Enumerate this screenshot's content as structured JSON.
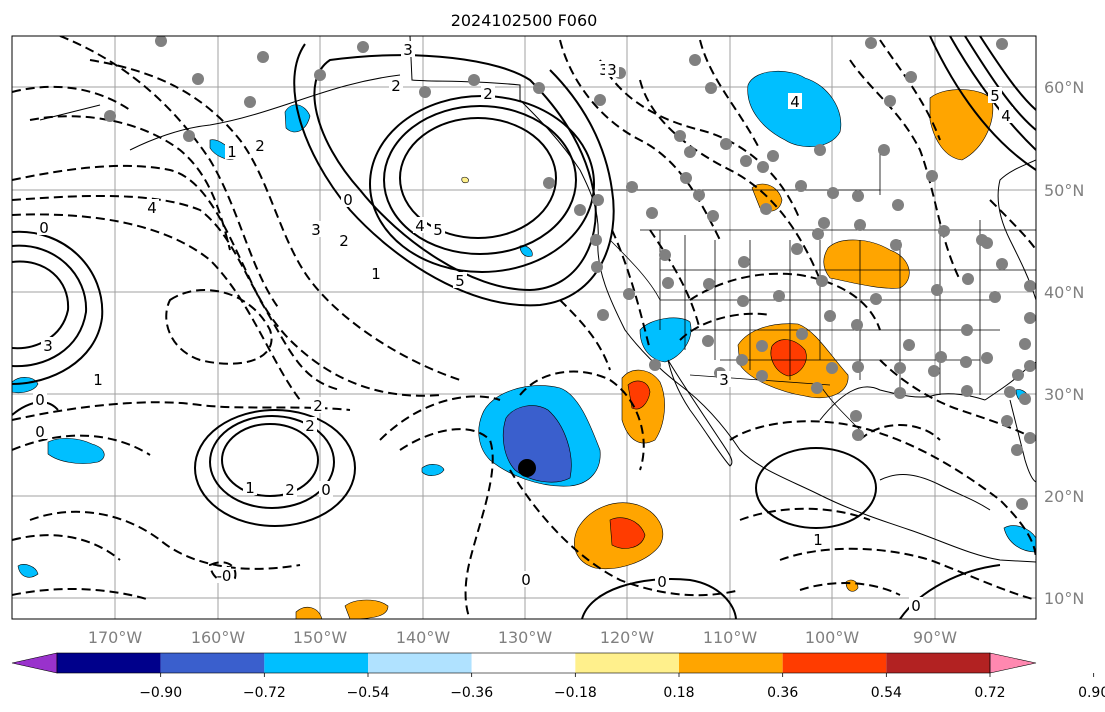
{
  "title": "2024102500 F060",
  "lon_labels": [
    "170°W",
    "160°W",
    "150°W",
    "140°W",
    "130°W",
    "120°W",
    "110°W",
    "100°W",
    "90°W"
  ],
  "lat_labels": [
    "60°N",
    "50°N",
    "40°N",
    "30°N",
    "20°N",
    "10°N"
  ],
  "colorbar": {
    "tick_labels": [
      "−0.90",
      "−0.72",
      "−0.54",
      "−0.36",
      "−0.18",
      "0.18",
      "0.36",
      "0.54",
      "0.72",
      "0.90"
    ],
    "colors": [
      "#9932cc",
      "#00008b",
      "#3a5fcd",
      "#00bfff",
      "#b0e2ff",
      "#ffffff",
      "#fff08c",
      "#ffa500",
      "#ff3c00",
      "#b22222",
      "#ff88b0"
    ]
  },
  "contour_labels": [
    "3",
    "2",
    "2",
    "3",
    "5",
    "4",
    "0",
    "2",
    "3",
    "5",
    "4",
    "0",
    "3",
    "1",
    "0",
    "2",
    "2",
    "1",
    "2",
    "0",
    "0",
    "1",
    "0",
    "3",
    "4",
    "4",
    "5",
    "3",
    "1",
    "0",
    "-0",
    "0",
    "2",
    "1"
  ],
  "marker_label": ""
}
